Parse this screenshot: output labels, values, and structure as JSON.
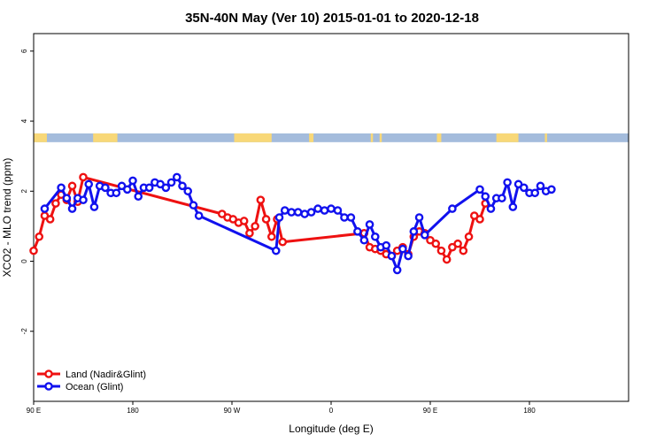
{
  "chart_data": {
    "type": "line",
    "title": "35N-40N May (Ver 10)   2015-01-01 to 2020-12-18",
    "xlabel": "Longitude (deg E)",
    "ylabel": "XCO2 - MLO trend (ppm)",
    "xlim": [
      -90,
      180
    ],
    "ylim": [
      -4,
      6.5
    ],
    "x_ticks": [
      {
        "value": -90,
        "label": "90 E"
      },
      {
        "value": -45,
        "label": "180"
      },
      {
        "value": 0,
        "label": "90 W"
      },
      {
        "value": 45,
        "label": "0"
      },
      {
        "value": 90,
        "label": "90 E"
      },
      {
        "value": 135,
        "label": "180"
      }
    ],
    "y_ticks": [
      {
        "value": -2,
        "label": "-2"
      },
      {
        "value": 0,
        "label": "0"
      },
      {
        "value": 2,
        "label": "2"
      },
      {
        "value": 4,
        "label": "4"
      },
      {
        "value": 6,
        "label": "6"
      }
    ],
    "grid": false,
    "legend_position": "bottom-left",
    "map_strip": {
      "y_range": [
        3.4,
        3.65
      ],
      "ocean_color": "#a4bcdc",
      "land_color": "#f8d878",
      "land_spans": [
        [
          -90,
          -84
        ],
        [
          -63,
          -52
        ],
        [
          1,
          18
        ],
        [
          35,
          37
        ],
        [
          63,
          64
        ],
        [
          67,
          68
        ],
        [
          93,
          95
        ],
        [
          120,
          130
        ],
        [
          142,
          143
        ]
      ]
    },
    "series": [
      {
        "name": "Land (Nadir&Glint)",
        "color": "#ee1111",
        "x": [
          -90,
          -87.5,
          -85,
          -82.5,
          -80,
          -77.5,
          -75,
          -72.5,
          -70,
          -67.5,
          -4.5,
          -2,
          0.5,
          3,
          5.5,
          8,
          10.5,
          13,
          15.5,
          18,
          20.5,
          23,
          60,
          62.5,
          65,
          67.5,
          70,
          72.5,
          75,
          77.5,
          80,
          82.5,
          85,
          87.5,
          90,
          92.5,
          95,
          97.5,
          100,
          102.5,
          105,
          107.5,
          110,
          112.5,
          115
        ],
        "y": [
          0.3,
          0.7,
          1.3,
          1.2,
          1.65,
          1.9,
          1.75,
          2.15,
          1.7,
          2.4,
          1.35,
          1.25,
          1.2,
          1.1,
          1.15,
          0.8,
          1.0,
          1.75,
          1.2,
          0.7,
          1.2,
          0.55,
          0.8,
          0.4,
          0.35,
          0.3,
          0.2,
          0.15,
          0.3,
          0.4,
          0.2,
          0.7,
          0.85,
          0.8,
          0.6,
          0.5,
          0.3,
          0.05,
          0.4,
          0.5,
          0.3,
          0.7,
          1.3,
          1.2,
          1.65
        ]
      },
      {
        "name": "Ocean (Glint)",
        "color": "#1111ee",
        "x": [
          -85,
          -77.5,
          -75,
          -72.5,
          -70,
          -67.5,
          -65,
          -62.5,
          -60,
          -57.5,
          -55,
          -52.5,
          -50,
          -47.5,
          -45,
          -42.5,
          -40,
          -37.5,
          -35,
          -32.5,
          -30,
          -27.5,
          -25,
          -22.5,
          -20,
          -17.5,
          -15,
          20,
          21.5,
          24,
          27,
          30,
          33,
          36,
          39,
          42,
          45,
          48,
          51,
          54,
          57,
          60,
          62.5,
          65,
          67.5,
          70,
          72.5,
          75,
          77.5,
          80,
          82.5,
          85,
          87.5,
          100,
          112.5,
          115,
          117.5,
          120,
          122.5,
          125,
          127.5,
          130,
          132.5,
          135,
          137.5,
          140,
          142.5,
          145
        ],
        "y": [
          1.5,
          2.1,
          1.8,
          1.5,
          1.8,
          1.75,
          2.2,
          1.55,
          2.15,
          2.1,
          1.95,
          1.95,
          2.15,
          2.05,
          2.3,
          1.85,
          2.1,
          2.1,
          2.25,
          2.2,
          2.1,
          2.25,
          2.4,
          2.15,
          2.0,
          1.6,
          1.3,
          0.3,
          1.25,
          1.45,
          1.4,
          1.4,
          1.35,
          1.4,
          1.5,
          1.45,
          1.5,
          1.45,
          1.25,
          1.25,
          0.85,
          0.6,
          1.05,
          0.7,
          0.4,
          0.45,
          0.15,
          -0.25,
          0.35,
          0.15,
          0.85,
          1.25,
          0.75,
          1.5,
          2.05,
          1.85,
          1.5,
          1.8,
          1.8,
          2.25,
          1.55,
          2.2,
          2.1,
          1.95,
          1.95,
          2.15,
          2.0,
          2.05
        ]
      }
    ]
  }
}
